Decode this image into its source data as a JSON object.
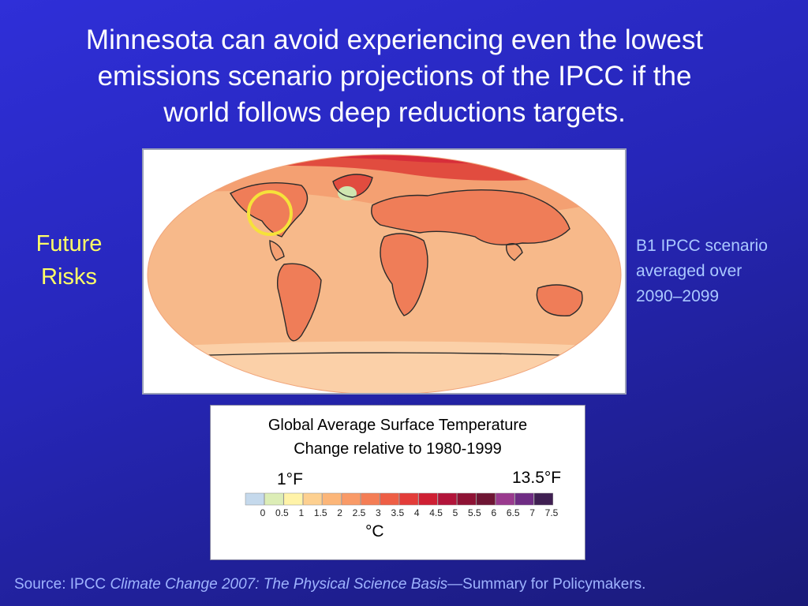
{
  "slide": {
    "title_lines": [
      "Minnesota can avoid experiencing even the lowest",
      "emissions scenario projections of the IPCC if the",
      "world follows deep reductions targets."
    ],
    "side_label_lines": [
      "Future",
      "Risks"
    ],
    "scenario_lines": [
      "B1 IPCC scenario",
      "averaged over",
      "2090–2099"
    ]
  },
  "legend": {
    "title_lines": [
      "Global Average Surface Temperature",
      "Change relative to 1980-1999"
    ],
    "fahrenheit_low": "1°F",
    "fahrenheit_high": "13.5°F",
    "unit": "°C",
    "ticks": [
      "0",
      "0.5",
      "1",
      "1.5",
      "2",
      "2.5",
      "3",
      "3.5",
      "4",
      "4.5",
      "5",
      "5.5",
      "6",
      "6.5",
      "7",
      "7.5"
    ],
    "colors": [
      "#c5d9ec",
      "#dcedb6",
      "#fff3a8",
      "#fdd090",
      "#fcb679",
      "#f99a67",
      "#f47d55",
      "#ee5e45",
      "#e33c39",
      "#cf1f33",
      "#b2143a",
      "#8e1234",
      "#6e1533",
      "#9a3a8e",
      "#6f2c84",
      "#3f1f52"
    ]
  },
  "map": {
    "colors": {
      "base": "#f7b98a",
      "mid": "#f4a072",
      "warm": "#ef7d58",
      "hot": "#e14c3f",
      "arctic": "#d72e3a",
      "greenland_cool": "#cfe6b0",
      "highlight_ring": "#f6e23a"
    }
  },
  "source": {
    "prefix": "Source: IPCC ",
    "italic": "Climate Change 2007: The Physical Science Basis",
    "suffix": "—Summary for Policymakers."
  }
}
